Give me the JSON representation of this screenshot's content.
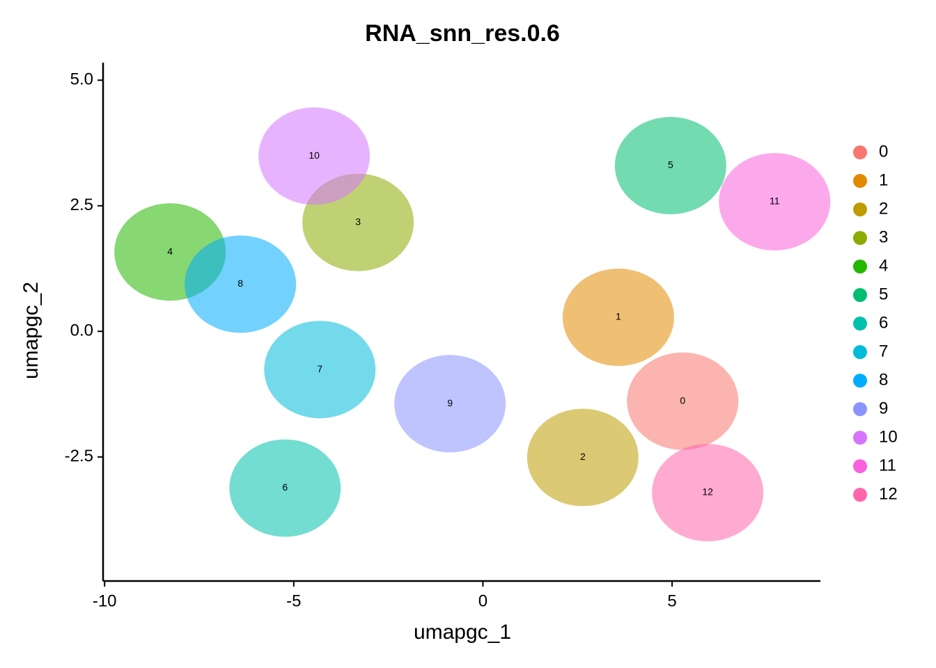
{
  "chart_data": {
    "type": "scatter",
    "title": "RNA_snn_res.0.6",
    "x_label": "umapgc_1",
    "y_label": "umapgc_2",
    "xlim": [
      -10.04,
      8.92
    ],
    "ylim": [
      -4.97,
      5.35
    ],
    "xticks": [
      -10,
      -5,
      0,
      5
    ],
    "yticks": [
      -2.5,
      {
        "value": 0,
        "label": "0.0"
      },
      2.5,
      {
        "value": 5,
        "label": "5.0"
      }
    ],
    "series": [
      {
        "name": "0",
        "color": "#F8766D",
        "x": [
          5.28
        ],
        "y": [
          -1.39
        ]
      },
      {
        "name": "1",
        "color": "#E18A00",
        "x": [
          3.58
        ],
        "y": [
          0.28
        ]
      },
      {
        "name": "2",
        "color": "#BE9C00",
        "x": [
          2.64
        ],
        "y": [
          -2.51
        ]
      },
      {
        "name": "3",
        "color": "#8CAB00",
        "x": [
          -3.3
        ],
        "y": [
          2.17
        ]
      },
      {
        "name": "4",
        "color": "#24B700",
        "x": [
          -8.27
        ],
        "y": [
          1.58
        ]
      },
      {
        "name": "5",
        "color": "#00BE70",
        "x": [
          4.96
        ],
        "y": [
          3.3
        ]
      },
      {
        "name": "6",
        "color": "#00C1AB",
        "x": [
          -5.23
        ],
        "y": [
          -3.12
        ]
      },
      {
        "name": "7",
        "color": "#00BBDA",
        "x": [
          -4.31
        ],
        "y": [
          -0.76
        ]
      },
      {
        "name": "8",
        "color": "#00ACFC",
        "x": [
          -6.41
        ],
        "y": [
          0.94
        ]
      },
      {
        "name": "9",
        "color": "#8B93FF",
        "x": [
          -0.87
        ],
        "y": [
          -1.44
        ]
      },
      {
        "name": "10",
        "color": "#D575FE",
        "x": [
          -4.46
        ],
        "y": [
          3.49
        ]
      },
      {
        "name": "11",
        "color": "#F962DD",
        "x": [
          7.71
        ],
        "y": [
          2.58
        ]
      },
      {
        "name": "12",
        "color": "#FF65AC",
        "x": [
          5.94
        ],
        "y": [
          -3.21
        ]
      }
    ]
  }
}
